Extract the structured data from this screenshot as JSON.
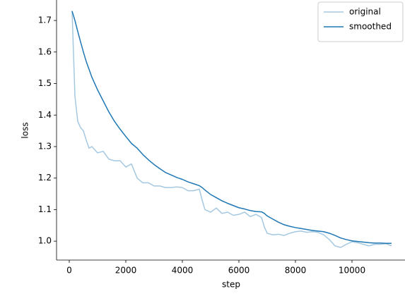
{
  "chart_data": {
    "type": "line",
    "xlabel": "step",
    "ylabel": "loss",
    "x": [
      100,
      200,
      300,
      400,
      500,
      600,
      700,
      800,
      1000,
      1200,
      1400,
      1600,
      1800,
      2000,
      2200,
      2400,
      2600,
      2800,
      3000,
      3200,
      3400,
      3600,
      3800,
      4000,
      4200,
      4400,
      4600,
      4700,
      4800,
      5000,
      5200,
      5400,
      5600,
      5800,
      6000,
      6200,
      6400,
      6600,
      6800,
      6900,
      7000,
      7200,
      7400,
      7600,
      7800,
      8000,
      8200,
      8400,
      8600,
      8800,
      9000,
      9200,
      9400,
      9600,
      9800,
      10000,
      10200,
      10400,
      10600,
      10800,
      11000,
      11200,
      11400
    ],
    "series": [
      {
        "name": "original",
        "color": "#a5c8e1",
        "values": [
          1.73,
          1.46,
          1.38,
          1.36,
          1.35,
          1.32,
          1.295,
          1.3,
          1.28,
          1.285,
          1.26,
          1.255,
          1.255,
          1.235,
          1.245,
          1.2,
          1.185,
          1.185,
          1.175,
          1.175,
          1.17,
          1.17,
          1.172,
          1.17,
          1.16,
          1.16,
          1.165,
          1.13,
          1.1,
          1.092,
          1.105,
          1.088,
          1.092,
          1.082,
          1.085,
          1.092,
          1.078,
          1.085,
          1.075,
          1.045,
          1.025,
          1.02,
          1.022,
          1.018,
          1.025,
          1.03,
          1.032,
          1.028,
          1.03,
          1.028,
          1.02,
          1.005,
          0.985,
          0.98,
          0.99,
          0.998,
          0.995,
          0.99,
          0.985,
          0.99,
          0.99,
          0.992,
          0.985
        ]
      },
      {
        "name": "smoothed",
        "color": "#1f77b4",
        "values": [
          1.73,
          1.7,
          1.665,
          1.632,
          1.6,
          1.57,
          1.545,
          1.52,
          1.48,
          1.445,
          1.41,
          1.38,
          1.355,
          1.332,
          1.31,
          1.295,
          1.275,
          1.258,
          1.243,
          1.23,
          1.218,
          1.21,
          1.202,
          1.196,
          1.188,
          1.182,
          1.176,
          1.17,
          1.162,
          1.148,
          1.138,
          1.128,
          1.12,
          1.113,
          1.106,
          1.102,
          1.097,
          1.094,
          1.093,
          1.088,
          1.08,
          1.07,
          1.06,
          1.052,
          1.047,
          1.043,
          1.04,
          1.037,
          1.034,
          1.032,
          1.03,
          1.025,
          1.018,
          1.01,
          1.005,
          1.001,
          0.999,
          0.997,
          0.995,
          0.994,
          0.994,
          0.993,
          0.993
        ]
      }
    ],
    "xlim": [
      -450,
      11875
    ],
    "ylim": [
      0.94,
      1.765
    ],
    "xticks": [
      0,
      2000,
      4000,
      6000,
      8000,
      10000
    ],
    "yticks": [
      {
        "value": 1.0,
        "label": "1.0"
      },
      {
        "value": 1.1,
        "label": "1.1"
      },
      {
        "value": 1.2,
        "label": "1.2"
      },
      {
        "value": 1.3,
        "label": "1.3"
      },
      {
        "value": 1.4,
        "label": "1.4"
      },
      {
        "value": 1.5,
        "label": "1.5"
      },
      {
        "value": 1.6,
        "label": "1.6"
      },
      {
        "value": 1.7,
        "label": "1.7"
      }
    ],
    "legend": "upper right"
  }
}
